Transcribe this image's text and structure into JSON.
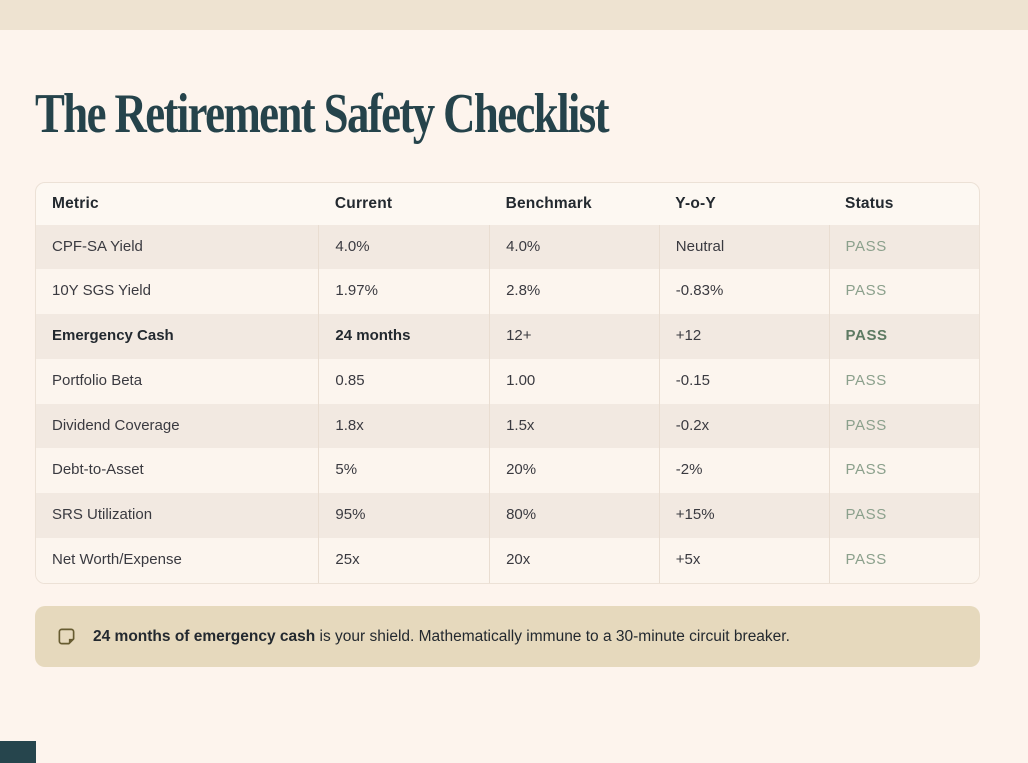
{
  "page": {
    "title": "The Retirement Safety Checklist"
  },
  "table": {
    "columns": [
      "Metric",
      "Current",
      "Benchmark",
      "Y-o-Y",
      "Status"
    ],
    "rows": [
      {
        "metric": "CPF-SA Yield",
        "current": "4.0%",
        "benchmark": "4.0%",
        "yoy": "Neutral",
        "status": "PASS",
        "highlight": false
      },
      {
        "metric": "10Y SGS Yield",
        "current": "1.97%",
        "benchmark": "2.8%",
        "yoy": "-0.83%",
        "status": "PASS",
        "highlight": false
      },
      {
        "metric": "Emergency Cash",
        "current": "24 months",
        "benchmark": "12+",
        "yoy": "+12",
        "status": "PASS",
        "highlight": true
      },
      {
        "metric": "Portfolio Beta",
        "current": "0.85",
        "benchmark": "1.00",
        "yoy": "-0.15",
        "status": "PASS",
        "highlight": false
      },
      {
        "metric": "Dividend Coverage",
        "current": "1.8x",
        "benchmark": "1.5x",
        "yoy": "-0.2x",
        "status": "PASS",
        "highlight": false
      },
      {
        "metric": "Debt-to-Asset",
        "current": "5%",
        "benchmark": "20%",
        "yoy": "-2%",
        "status": "PASS",
        "highlight": false
      },
      {
        "metric": "SRS Utilization",
        "current": "95%",
        "benchmark": "80%",
        "yoy": "+15%",
        "status": "PASS",
        "highlight": false
      },
      {
        "metric": "Net Worth/Expense",
        "current": "25x",
        "benchmark": "20x",
        "yoy": "+5x",
        "status": "PASS",
        "highlight": false
      }
    ]
  },
  "callout": {
    "icon": "sticky-note-icon",
    "bold_text": "24 months of emergency cash",
    "text": " is your shield. Mathematically immune to a 30-minute circuit breaker."
  },
  "colors": {
    "page_background": "#fdf4ed",
    "top_band": "#eee3d1",
    "title_teal": "#25434b",
    "row_shaded": "#f2e9e1",
    "row_light": "#fcf5ee",
    "pass_green": "#8ba08c",
    "pass_green_strong": "#5d7a62",
    "callout_background": "#e6d9bd",
    "corner_block": "#26454d"
  }
}
